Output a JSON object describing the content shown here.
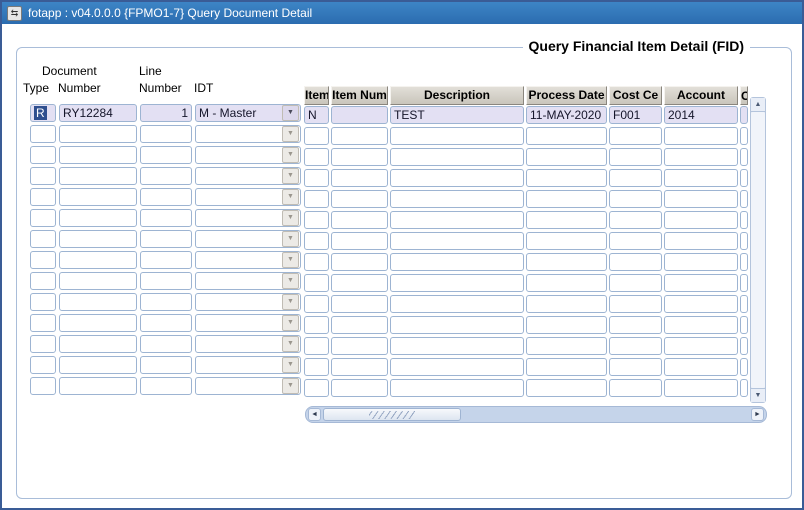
{
  "window": {
    "title": "fotapp : v04.0.0.0  {FPMO1-7} Query Document Detail",
    "app_icon": "⇆"
  },
  "form": {
    "title": "Query Financial Item Detail (FID)"
  },
  "doc_block": {
    "labels": {
      "document": "Document",
      "type": "Type",
      "number": "Number",
      "line": "Line",
      "line_number": "Number",
      "idt": "IDT"
    },
    "row": {
      "type": "R",
      "number": "RY12284",
      "line_number": "1",
      "idt": "M - Master"
    },
    "empty_row_count": 13,
    "dropdown_arrow": "▼"
  },
  "item_table": {
    "columns": {
      "item": "Item",
      "item_num": "Item Num",
      "description": "Description",
      "process_date": "Process Date",
      "cost_center": "Cost Ce",
      "account": "Account",
      "partial": "C"
    },
    "row": {
      "item": "N",
      "item_num": "",
      "description": "TEST",
      "process_date": "11-MAY-2020",
      "cost_center": "F001",
      "account": "2014"
    },
    "empty_row_count": 13
  },
  "scrollbars": {
    "up_arrow": "▲",
    "down_arrow": "▼",
    "left_arrow": "◄",
    "right_arrow": "►"
  },
  "colors": {
    "titlebar_blue": "#2f7bbd",
    "window_border": "#3a5c96",
    "field_fill": "#e3e0f3",
    "selected_cell": "#2f4f8f",
    "header_gray": "#d5d1c8",
    "scrollbar_track": "#c5d4ea"
  }
}
